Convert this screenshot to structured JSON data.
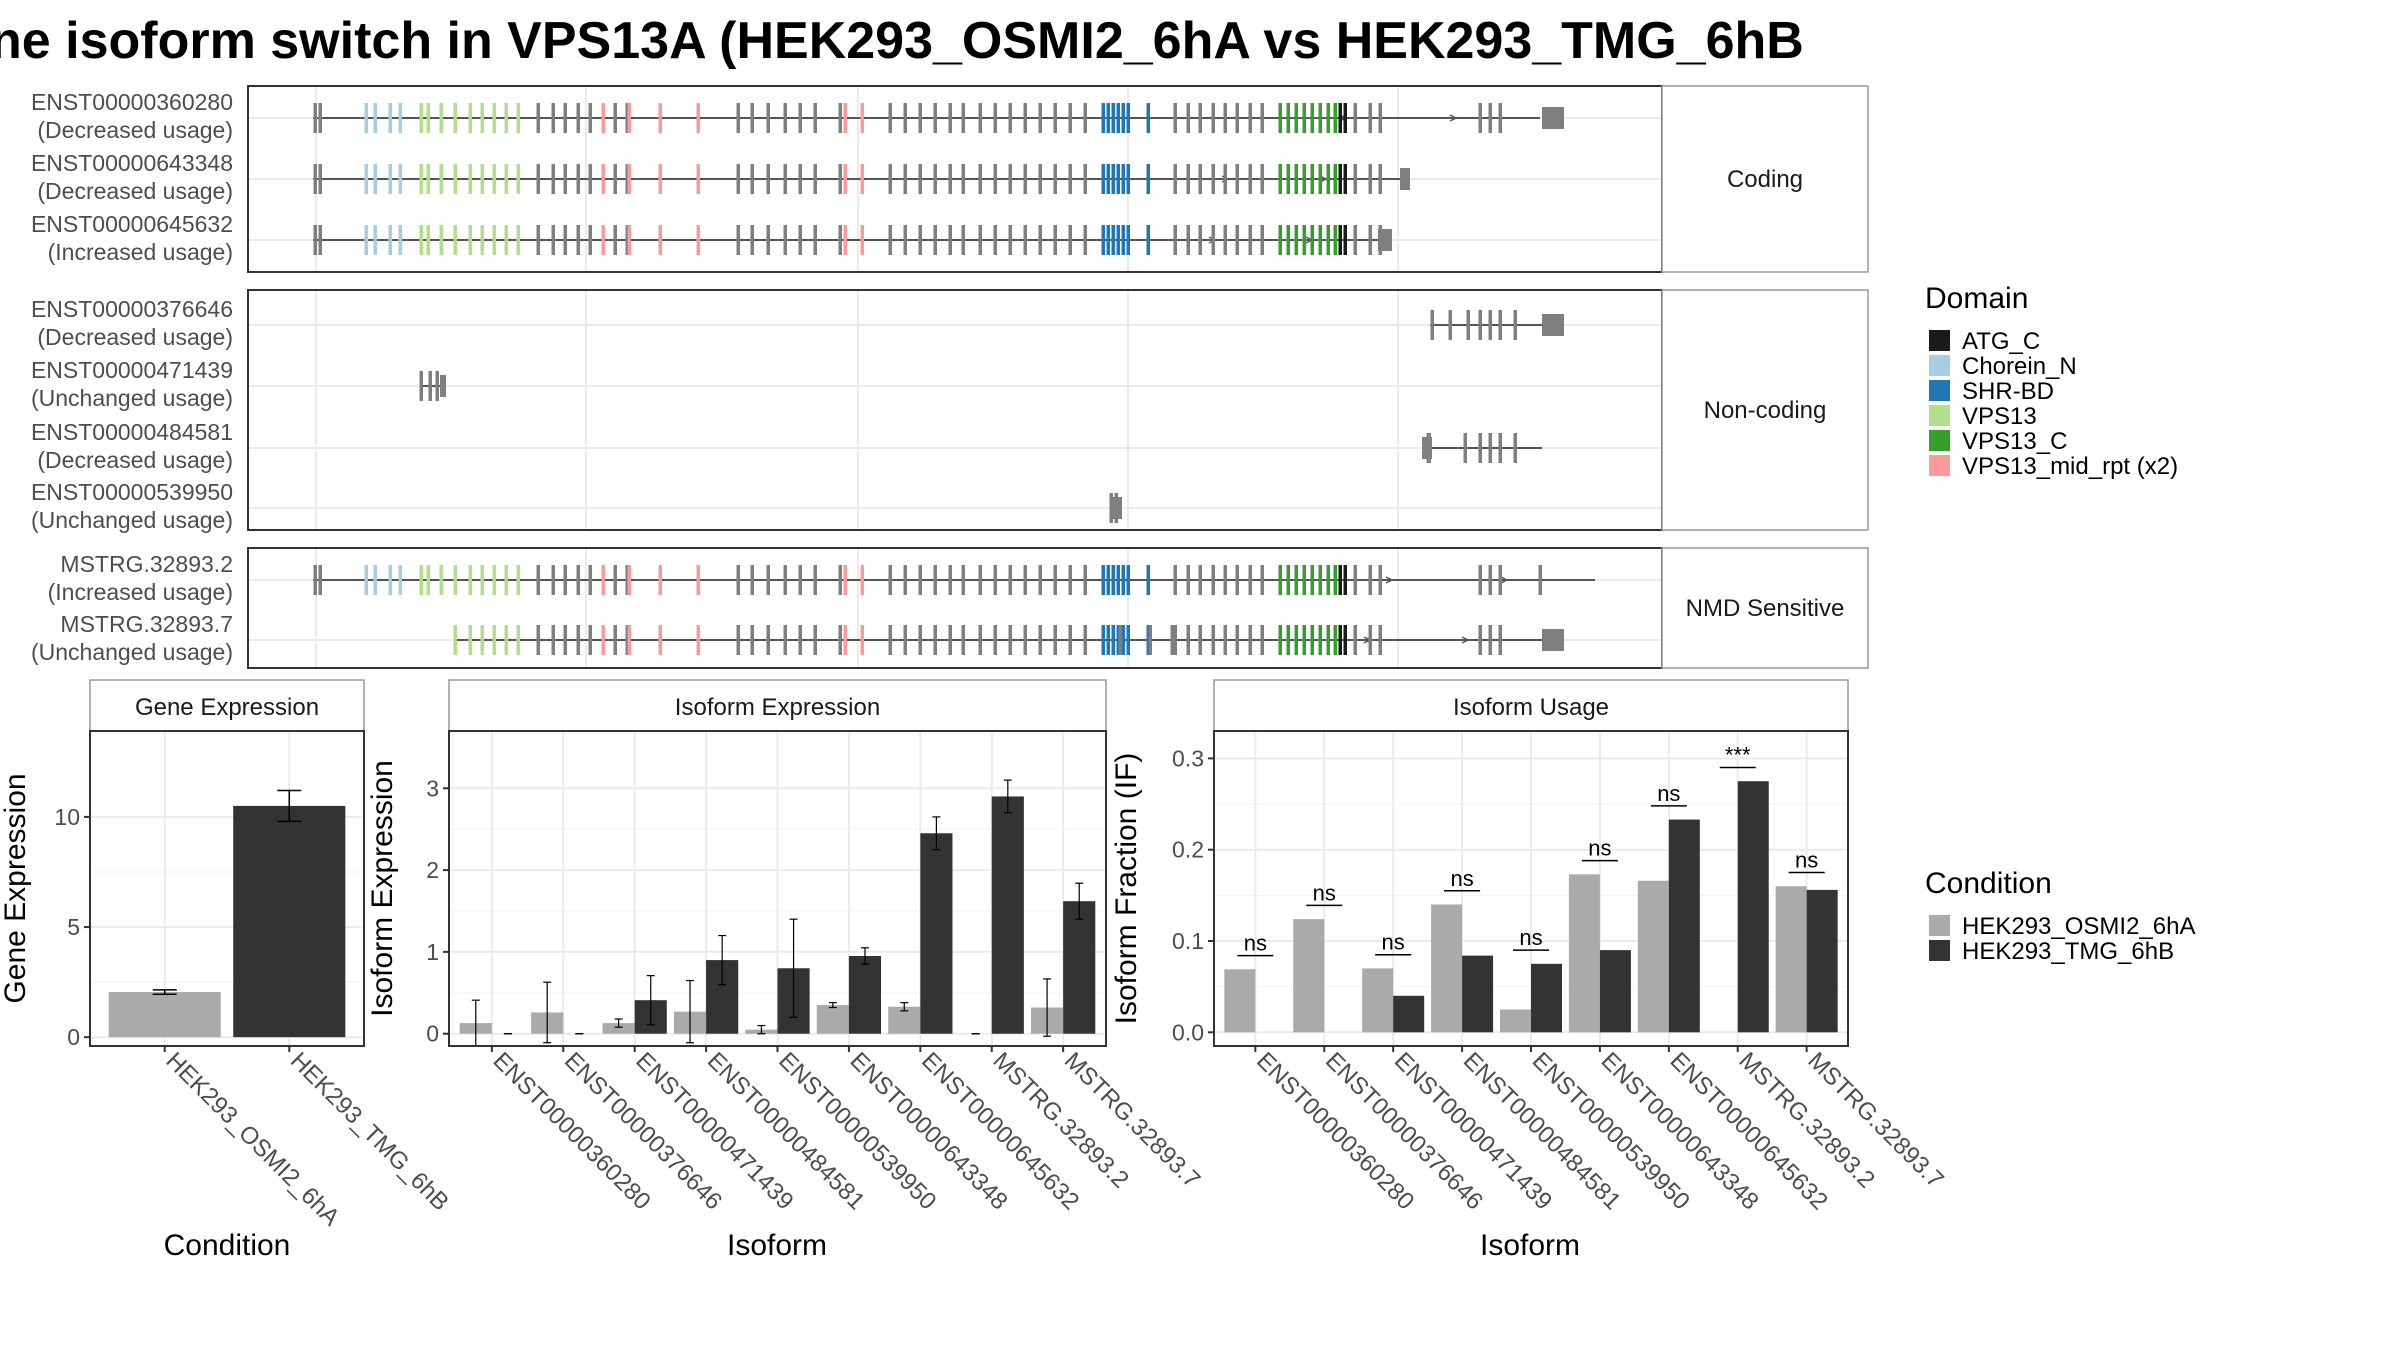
{
  "title": "ne isoform switch in VPS13A (HEK293_OSMI2_6hA vs HEK293_TMG_6hB",
  "isoform_panel": {
    "groups": [
      {
        "label": "Coding",
        "rows": [
          {
            "id": "ENST00000360280",
            "usage": "(Decreased usage)"
          },
          {
            "id": "ENST00000643348",
            "usage": "(Decreased usage)"
          },
          {
            "id": "ENST00000645632",
            "usage": "(Increased usage)"
          }
        ]
      },
      {
        "label": "Non-coding",
        "rows": [
          {
            "id": "ENST00000376646",
            "usage": "(Decreased usage)"
          },
          {
            "id": "ENST00000471439",
            "usage": "(Unchanged usage)"
          },
          {
            "id": "ENST00000484581",
            "usage": "(Decreased usage)"
          },
          {
            "id": "ENST00000539950",
            "usage": "(Unchanged usage)"
          }
        ]
      },
      {
        "label": "NMD Sensitive",
        "rows": [
          {
            "id": "MSTRG.32893.2",
            "usage": "(Increased usage)"
          },
          {
            "id": "MSTRG.32893.7",
            "usage": "(Unchanged usage)"
          }
        ]
      }
    ]
  },
  "domain_legend": {
    "title": "Domain",
    "items": [
      {
        "label": "ATG_C",
        "color": "#1a1a1a"
      },
      {
        "label": "Chorein_N",
        "color": "#a6cee3"
      },
      {
        "label": "SHR-BD",
        "color": "#1f78b4"
      },
      {
        "label": "VPS13",
        "color": "#b2df8a"
      },
      {
        "label": "VPS13_C",
        "color": "#33a02c"
      },
      {
        "label": "VPS13_mid_rpt (x2)",
        "color": "#fb9a99"
      }
    ]
  },
  "condition_legend": {
    "title": "Condition",
    "items": [
      {
        "label": "HEK293_OSMI2_6hA",
        "color": "#aaaaaa"
      },
      {
        "label": "HEK293_TMG_6hB",
        "color": "#333333"
      }
    ]
  },
  "chart_data": [
    {
      "type": "bar",
      "title": "Gene Expression",
      "xlabel": "Condition",
      "ylabel": "Gene Expression",
      "categories": [
        "HEK293_OSMI2_6hA",
        "HEK293_TMG_6hB"
      ],
      "values": [
        2.05,
        10.5
      ],
      "errors": [
        0.1,
        0.7
      ],
      "ylim": [
        -0.4,
        13.9
      ],
      "yticks": [
        0,
        5,
        10
      ]
    },
    {
      "type": "bar",
      "title": "Isoform Expression",
      "xlabel": "Isoform",
      "ylabel": "Isoform Expression",
      "categories": [
        "ENST00000360280",
        "ENST00000376646",
        "ENST00000471439",
        "ENST00000484581",
        "ENST00000539950",
        "ENST00000643348",
        "ENST00000645632",
        "MSTRG.32893.2",
        "MSTRG.32893.7"
      ],
      "series": [
        {
          "name": "HEK293_OSMI2_6hA",
          "values": [
            0.13,
            0.26,
            0.13,
            0.27,
            0.05,
            0.35,
            0.33,
            0.0,
            0.32
          ],
          "errors": [
            0.28,
            0.37,
            0.05,
            0.38,
            0.05,
            0.03,
            0.05,
            0.0,
            0.35
          ]
        },
        {
          "name": "HEK293_TMG_6hB",
          "values": [
            0.0,
            0.0,
            0.41,
            0.9,
            0.8,
            0.95,
            2.45,
            2.9,
            1.62
          ],
          "errors": [
            0.0,
            0.0,
            0.3,
            0.3,
            0.6,
            0.1,
            0.2,
            0.2,
            0.22
          ]
        }
      ],
      "ylim": [
        -0.15,
        3.7
      ],
      "yticks": [
        0,
        1,
        2,
        3
      ]
    },
    {
      "type": "bar",
      "title": "Isoform Usage",
      "xlabel": "Isoform",
      "ylabel": "Isoform Fraction (IF)",
      "categories": [
        "ENST00000360280",
        "ENST00000376646",
        "ENST00000471439",
        "ENST00000484581",
        "ENST00000539950",
        "ENST00000643348",
        "ENST00000645632",
        "MSTRG.32893.2",
        "MSTRG.32893.7"
      ],
      "series": [
        {
          "name": "HEK293_OSMI2_6hA",
          "values": [
            0.069,
            0.124,
            0.07,
            0.14,
            0.025,
            0.173,
            0.166,
            0.0,
            0.16
          ]
        },
        {
          "name": "HEK293_TMG_6hB",
          "values": [
            0.0,
            0.0,
            0.04,
            0.084,
            0.075,
            0.09,
            0.233,
            0.275,
            0.156
          ]
        }
      ],
      "significance": [
        "ns",
        "ns",
        "ns",
        "ns",
        "ns",
        "ns",
        "ns",
        "***",
        "ns"
      ],
      "ylim": [
        -0.015,
        0.33
      ],
      "yticks": [
        0.0,
        0.1,
        0.2,
        0.3
      ]
    }
  ]
}
